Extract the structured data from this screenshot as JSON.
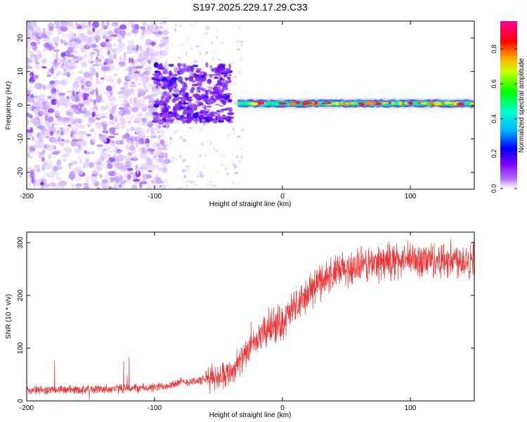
{
  "title": "S197.2025.229.17.29.C33",
  "chart_data": [
    {
      "type": "heatmap",
      "title": "S197.2025.229.17.29.C33",
      "xlabel": "Height of straight line (km)",
      "ylabel": "Frequency (Hz)",
      "xlim": [
        -200,
        150
      ],
      "ylim": [
        -25,
        25
      ],
      "x_ticks": [
        -200,
        -100,
        0,
        100
      ],
      "y_ticks": [
        -20,
        -10,
        0,
        10,
        20
      ],
      "colorbar": {
        "label": "Normalized spectral amplitude",
        "ticks": [
          0.0,
          0.2,
          0.4,
          0.6,
          0.8
        ],
        "tick_labels": [
          "0.0",
          "0.2",
          "0.4",
          "0.6",
          "0.8"
        ],
        "range": [
          0,
          0.96
        ],
        "colormap": [
          "#ffffff",
          "#8800ff",
          "#0000ff",
          "#00e5ff",
          "#00ff00",
          "#ffff00",
          "#ff8800",
          "#ff0000",
          "#ff0088"
        ]
      },
      "description_regions": [
        {
          "x_range": [
            -200,
            -110
          ],
          "freq_range": [
            -25,
            25
          ],
          "amplitude": [
            0.05,
            0.2
          ]
        },
        {
          "x_range": [
            -100,
            -40
          ],
          "freq_range": [
            -5,
            12
          ],
          "amplitude": [
            0.15,
            0.3
          ]
        },
        {
          "x_range": [
            -35,
            150
          ],
          "freq_range": [
            -1,
            2
          ],
          "amplitude": [
            0.3,
            0.96
          ]
        }
      ]
    },
    {
      "type": "line",
      "xlabel": "Height of straight line (km)",
      "ylabel": "SNR (10 * v/v)",
      "xlim": [
        -200,
        150
      ],
      "ylim": [
        0,
        320
      ],
      "x_ticks": [
        -200,
        -100,
        0,
        100
      ],
      "y_ticks": [
        0,
        100,
        200,
        300
      ],
      "color": "#ee3333",
      "series_profile": [
        {
          "x": -200,
          "y": 20
        },
        {
          "x": -150,
          "y": 22
        },
        {
          "x": -100,
          "y": 25
        },
        {
          "x": -80,
          "y": 35
        },
        {
          "x": -60,
          "y": 40
        },
        {
          "x": -40,
          "y": 55
        },
        {
          "x": -25,
          "y": 100
        },
        {
          "x": -10,
          "y": 140
        },
        {
          "x": 0,
          "y": 150
        },
        {
          "x": 15,
          "y": 190
        },
        {
          "x": 30,
          "y": 230
        },
        {
          "x": 50,
          "y": 250
        },
        {
          "x": 80,
          "y": 265
        },
        {
          "x": 150,
          "y": 270
        }
      ]
    }
  ]
}
